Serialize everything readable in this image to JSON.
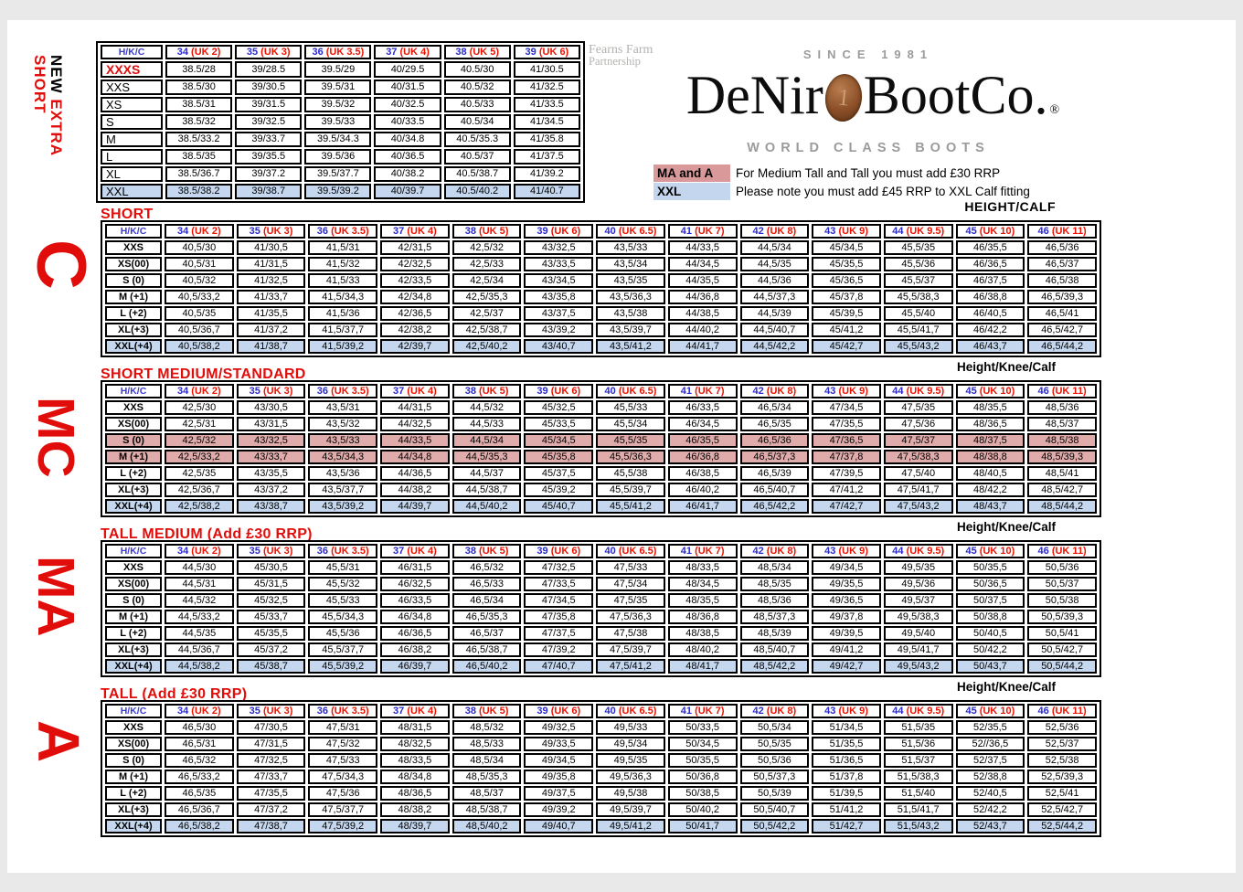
{
  "brand": {
    "partner_line1": "Fearns Farm",
    "partner_line2": "Partnership",
    "since": "SINCE 1981",
    "name_left": "DeNir",
    "name_right": "BootCo",
    "name_dot": ".",
    "registered": "®",
    "coin_digit": "1",
    "tagline": "WORLD CLASS BOOTS"
  },
  "legend": {
    "items": [
      {
        "key": "MA and A",
        "text": "For Medium Tall and Tall you must add £30 RRP"
      },
      {
        "key": "XXL",
        "text": "Please note you must add £45 RRP to XXL Calf fitting"
      }
    ]
  },
  "labels": {
    "corner": "H/K/C",
    "height_calf": "HEIGHT/CALF",
    "height_knee_calf": "Height/Knee/Calf"
  },
  "side_labels": {
    "new_word": "NEW",
    "extra_word": "EXTRA",
    "short_word": "SHORT",
    "c": "C",
    "mc": "MC",
    "ma": "MA",
    "a": "A"
  },
  "column_sets": {
    "six": [
      {
        "num": "34",
        "uk": "(UK 2)"
      },
      {
        "num": "35",
        "uk": "(UK 3)"
      },
      {
        "num": "36",
        "uk": "(UK 3.5)"
      },
      {
        "num": "37",
        "uk": "(UK 4)"
      },
      {
        "num": "38",
        "uk": "(UK 5)"
      },
      {
        "num": "39",
        "uk": "(UK 6)"
      }
    ],
    "thirteen": [
      {
        "num": "34",
        "uk": "(UK 2)"
      },
      {
        "num": "35",
        "uk": "(UK 3)"
      },
      {
        "num": "36",
        "uk": "(UK 3.5)"
      },
      {
        "num": "37",
        "uk": "(UK 4)"
      },
      {
        "num": "38",
        "uk": "(UK 5)"
      },
      {
        "num": "39",
        "uk": "(UK 6)"
      },
      {
        "num": "40",
        "uk": "(UK 6.5)"
      },
      {
        "num": "41",
        "uk": "(UK 7)"
      },
      {
        "num": "42",
        "uk": "(UK 8)"
      },
      {
        "num": "43",
        "uk": "(UK 9)"
      },
      {
        "num": "44",
        "uk": "(UK 9.5)"
      },
      {
        "num": "45",
        "uk": "(UK 10)"
      },
      {
        "num": "46",
        "uk": "(UK 11)"
      }
    ]
  },
  "tables": [
    {
      "id": "extra-short",
      "title": "",
      "columns": "six",
      "label_style": "plain",
      "label_col_width": 68,
      "rows": [
        {
          "label": "XXXS",
          "label_class": "xxxs",
          "bg": "",
          "values": [
            "38.5/28",
            "39/28.5",
            "39.5/29",
            "40/29.5",
            "40.5/30",
            "41/30.5"
          ]
        },
        {
          "label": "XXS",
          "bg": "",
          "values": [
            "38.5/30",
            "39/30.5",
            "39.5/31",
            "40/31.5",
            "40.5/32",
            "41/32.5"
          ]
        },
        {
          "label": "XS",
          "bg": "",
          "values": [
            "38.5/31",
            "39/31.5",
            "39.5/32",
            "40/32.5",
            "40.5/33",
            "41/33.5"
          ]
        },
        {
          "label": "S",
          "bg": "",
          "values": [
            "38.5/32",
            "39/32.5",
            "39.5/33",
            "40/33.5",
            "40.5/34",
            "41/34.5"
          ]
        },
        {
          "label": "M",
          "bg": "",
          "values": [
            "38.5/33.2",
            "39/33.7",
            "39.5/34.3",
            "40/34.8",
            "40.5/35.3",
            "41/35.8"
          ]
        },
        {
          "label": "L",
          "bg": "",
          "values": [
            "38.5/35",
            "39/35.5",
            "39.5/36",
            "40/36.5",
            "40.5/37",
            "41/37.5"
          ]
        },
        {
          "label": "XL",
          "bg": "",
          "values": [
            "38.5/36.7",
            "39/37.2",
            "39.5/37.7",
            "40/38.2",
            "40.5/38.7",
            "41/39.2"
          ]
        },
        {
          "label": "XXL",
          "bg": "blue",
          "values": [
            "38.5/38.2",
            "39/38.7",
            "39.5/39.2",
            "40/39.7",
            "40.5/40.2",
            "41/40.7"
          ]
        }
      ]
    },
    {
      "id": "short",
      "title": "SHORT",
      "columns": "thirteen",
      "label_style": "",
      "label_col_width": 62,
      "rows": [
        {
          "label": "XXS",
          "bg": "",
          "values": [
            "40,5/30",
            "41/30,5",
            "41,5/31",
            "42/31,5",
            "42,5/32",
            "43/32,5",
            "43,5/33",
            "44/33,5",
            "44,5/34",
            "45/34,5",
            "45,5/35",
            "46/35,5",
            "46,5/36"
          ]
        },
        {
          "label": "XS(00)",
          "bg": "",
          "values": [
            "40,5/31",
            "41/31,5",
            "41,5/32",
            "42/32,5",
            "42,5/33",
            "43/33,5",
            "43,5/34",
            "44/34,5",
            "44,5/35",
            "45/35,5",
            "45,5/36",
            "46/36,5",
            "46,5/37"
          ]
        },
        {
          "label": "S (0)",
          "bg": "",
          "values": [
            "40,5/32",
            "41/32,5",
            "41,5/33",
            "42/33,5",
            "42,5/34",
            "43/34,5",
            "43,5/35",
            "44/35,5",
            "44,5/36",
            "45/36,5",
            "45,5/37",
            "46/37,5",
            "46,5/38"
          ]
        },
        {
          "label": "M (+1)",
          "bg": "",
          "values": [
            "40,5/33,2",
            "41/33,7",
            "41,5/34,3",
            "42/34,8",
            "42,5/35,3",
            "43/35,8",
            "43,5/36,3",
            "44/36,8",
            "44,5/37,3",
            "45/37,8",
            "45,5/38,3",
            "46/38,8",
            "46,5/39,3"
          ]
        },
        {
          "label": "L (+2)",
          "bg": "",
          "values": [
            "40,5/35",
            "41/35,5",
            "41,5/36",
            "42/36,5",
            "42,5/37",
            "43/37,5",
            "43,5/38",
            "44/38,5",
            "44,5/39",
            "45/39,5",
            "45,5/40",
            "46/40,5",
            "46,5/41"
          ]
        },
        {
          "label": "XL(+3)",
          "bg": "",
          "values": [
            "40,5/36,7",
            "41/37,2",
            "41,5/37,7",
            "42/38,2",
            "42,5/38,7",
            "43/39,2",
            "43,5/39,7",
            "44/40,2",
            "44,5/40,7",
            "45/41,2",
            "45,5/41,7",
            "46/42,2",
            "46,5/42,7"
          ]
        },
        {
          "label": "XXL(+4)",
          "bg": "blue",
          "values": [
            "40,5/38,2",
            "41/38,7",
            "41,5/39,2",
            "42/39,7",
            "42,5/40,2",
            "43/40,7",
            "43,5/41,2",
            "44/41,7",
            "44,5/42,2",
            "45/42,7",
            "45,5/43,2",
            "46/43,7",
            "46,5/44,2"
          ]
        }
      ]
    },
    {
      "id": "short-medium",
      "title": "SHORT MEDIUM/STANDARD",
      "columns": "thirteen",
      "label_style": "",
      "label_col_width": 62,
      "rows": [
        {
          "label": "XXS",
          "bg": "",
          "values": [
            "42,5/30",
            "43/30,5",
            "43,5/31",
            "44/31,5",
            "44,5/32",
            "45/32,5",
            "45,5/33",
            "46/33,5",
            "46,5/34",
            "47/34,5",
            "47,5/35",
            "48/35,5",
            "48,5/36"
          ]
        },
        {
          "label": "XS(00)",
          "bg": "",
          "values": [
            "42,5/31",
            "43/31,5",
            "43,5/32",
            "44/32,5",
            "44,5/33",
            "45/33,5",
            "45,5/34",
            "46/34,5",
            "46,5/35",
            "47/35,5",
            "47,5/36",
            "48/36,5",
            "48,5/37"
          ]
        },
        {
          "label": "S (0)",
          "bg": "pink",
          "values": [
            "42,5/32",
            "43/32,5",
            "43,5/33",
            "44/33,5",
            "44,5/34",
            "45/34,5",
            "45,5/35",
            "46/35,5",
            "46,5/36",
            "47/36,5",
            "47,5/37",
            "48/37,5",
            "48,5/38"
          ]
        },
        {
          "label": "M (+1)",
          "bg": "pink",
          "values": [
            "42,5/33,2",
            "43/33,7",
            "43,5/34,3",
            "44/34,8",
            "44,5/35,3",
            "45/35,8",
            "45,5/36,3",
            "46/36,8",
            "46,5/37,3",
            "47/37,8",
            "47,5/38,3",
            "48/38,8",
            "48,5/39,3"
          ]
        },
        {
          "label": "L (+2)",
          "bg": "",
          "values": [
            "42,5/35",
            "43/35,5",
            "43,5/36",
            "44/36,5",
            "44,5/37",
            "45/37,5",
            "45,5/38",
            "46/38,5",
            "46,5/39",
            "47/39,5",
            "47,5/40",
            "48/40,5",
            "48,5/41"
          ]
        },
        {
          "label": "XL(+3)",
          "bg": "",
          "values": [
            "42,5/36,7",
            "43/37,2",
            "43,5/37,7",
            "44/38,2",
            "44,5/38,7",
            "45/39,2",
            "45,5/39,7",
            "46/40,2",
            "46,5/40,7",
            "47/41,2",
            "47,5/41,7",
            "48/42,2",
            "48,5/42,7"
          ]
        },
        {
          "label": "XXL(+4)",
          "bg": "blue",
          "values": [
            "42,5/38,2",
            "43/38,7",
            "43,5/39,2",
            "44/39,7",
            "44,5/40,2",
            "45/40,7",
            "45,5/41,2",
            "46/41,7",
            "46,5/42,2",
            "47/42,7",
            "47,5/43,2",
            "48/43,7",
            "48,5/44,2"
          ]
        }
      ]
    },
    {
      "id": "tall-medium",
      "title": "TALL MEDIUM (Add £30 RRP)",
      "columns": "thirteen",
      "label_style": "",
      "label_col_width": 62,
      "rows": [
        {
          "label": "XXS",
          "bg": "",
          "values": [
            "44,5/30",
            "45/30,5",
            "45,5/31",
            "46/31,5",
            "46,5/32",
            "47/32,5",
            "47,5/33",
            "48/33,5",
            "48,5/34",
            "49/34,5",
            "49,5/35",
            "50/35,5",
            "50,5/36"
          ]
        },
        {
          "label": "XS(00)",
          "bg": "",
          "values": [
            "44,5/31",
            "45/31,5",
            "45,5/32",
            "46/32,5",
            "46,5/33",
            "47/33,5",
            "47,5/34",
            "48/34,5",
            "48,5/35",
            "49/35,5",
            "49,5/36",
            "50/36,5",
            "50,5/37"
          ]
        },
        {
          "label": "S (0)",
          "bg": "",
          "values": [
            "44,5/32",
            "45/32,5",
            "45,5/33",
            "46/33,5",
            "46,5/34",
            "47/34,5",
            "47,5/35",
            "48/35,5",
            "48,5/36",
            "49/36,5",
            "49,5/37",
            "50/37,5",
            "50,5/38"
          ]
        },
        {
          "label": "M (+1)",
          "bg": "",
          "values": [
            "44,5/33,2",
            "45/33,7",
            "45,5/34,3",
            "46/34,8",
            "46,5/35,3",
            "47/35,8",
            "47,5/36,3",
            "48/36,8",
            "48,5/37,3",
            "49/37,8",
            "49,5/38,3",
            "50/38,8",
            "50,5/39,3"
          ]
        },
        {
          "label": "L (+2)",
          "bg": "",
          "values": [
            "44,5/35",
            "45/35,5",
            "45,5/36",
            "46/36,5",
            "46,5/37",
            "47/37,5",
            "47,5/38",
            "48/38,5",
            "48,5/39",
            "49/39,5",
            "49,5/40",
            "50/40,5",
            "50,5/41"
          ]
        },
        {
          "label": "XL(+3)",
          "bg": "",
          "values": [
            "44,5/36,7",
            "45/37,2",
            "45,5/37,7",
            "46/38,2",
            "46,5/38,7",
            "47/39,2",
            "47,5/39,7",
            "48/40,2",
            "48,5/40,7",
            "49/41,2",
            "49,5/41,7",
            "50/42,2",
            "50,5/42,7"
          ]
        },
        {
          "label": "XXL(+4)",
          "bg": "blue",
          "values": [
            "44,5/38,2",
            "45/38,7",
            "45,5/39,2",
            "46/39,7",
            "46,5/40,2",
            "47/40,7",
            "47,5/41,2",
            "48/41,7",
            "48,5/42,2",
            "49/42,7",
            "49,5/43,2",
            "50/43,7",
            "50,5/44,2"
          ]
        }
      ]
    },
    {
      "id": "tall",
      "title": "TALL (Add £30 RRP)",
      "columns": "thirteen",
      "label_style": "",
      "label_col_width": 62,
      "rows": [
        {
          "label": "XXS",
          "bg": "",
          "values": [
            "46,5/30",
            "47/30,5",
            "47,5/31",
            "48/31,5",
            "48,5/32",
            "49/32,5",
            "49,5/33",
            "50/33,5",
            "50,5/34",
            "51/34,5",
            "51,5/35",
            "52/35,5",
            "52,5/36"
          ]
        },
        {
          "label": "XS(00)",
          "bg": "",
          "values": [
            "46,5/31",
            "47/31,5",
            "47,5/32",
            "48/32,5",
            "48,5/33",
            "49/33,5",
            "49,5/34",
            "50/34,5",
            "50,5/35",
            "51/35,5",
            "51,5/36",
            "52//36,5",
            "52,5/37"
          ]
        },
        {
          "label": "S (0)",
          "bg": "",
          "values": [
            "46,5/32",
            "47/32,5",
            "47,5/33",
            "48/33,5",
            "48,5/34",
            "49/34,5",
            "49,5/35",
            "50/35,5",
            "50,5/36",
            "51/36,5",
            "51,5/37",
            "52/37,5",
            "52,5/38"
          ]
        },
        {
          "label": "M (+1)",
          "bg": "",
          "values": [
            "46,5/33,2",
            "47/33,7",
            "47,5/34,3",
            "48/34,8",
            "48,5/35,3",
            "49/35,8",
            "49,5/36,3",
            "50/36,8",
            "50,5/37,3",
            "51/37,8",
            "51,5/38,3",
            "52/38,8",
            "52,5/39,3"
          ]
        },
        {
          "label": "L (+2)",
          "bg": "",
          "values": [
            "46,5/35",
            "47/35,5",
            "47,5/36",
            "48/36,5",
            "48,5/37",
            "49/37,5",
            "49,5/38",
            "50/38,5",
            "50,5/39",
            "51/39,5",
            "51,5/40",
            "52/40,5",
            "52,5/41"
          ]
        },
        {
          "label": "XL(+3)",
          "bg": "",
          "values": [
            "46,5/36,7",
            "47/37,2",
            "47,5/37,7",
            "48/38,2",
            "48,5/38,7",
            "49/39,2",
            "49,5/39,7",
            "50/40,2",
            "50,5/40,7",
            "51/41,2",
            "51,5/41,7",
            "52/42,2",
            "52,5/42,7"
          ]
        },
        {
          "label": "XXL(+4)",
          "bg": "blue",
          "values": [
            "46,5/38,2",
            "47/38,7",
            "47,5/39,2",
            "48/39,7",
            "48,5/40,2",
            "49/40,7",
            "49,5/41,2",
            "50/41,7",
            "50,5/42,2",
            "51/42,7",
            "51,5/43,2",
            "52/43,7",
            "52,5/44,2"
          ]
        }
      ]
    }
  ]
}
